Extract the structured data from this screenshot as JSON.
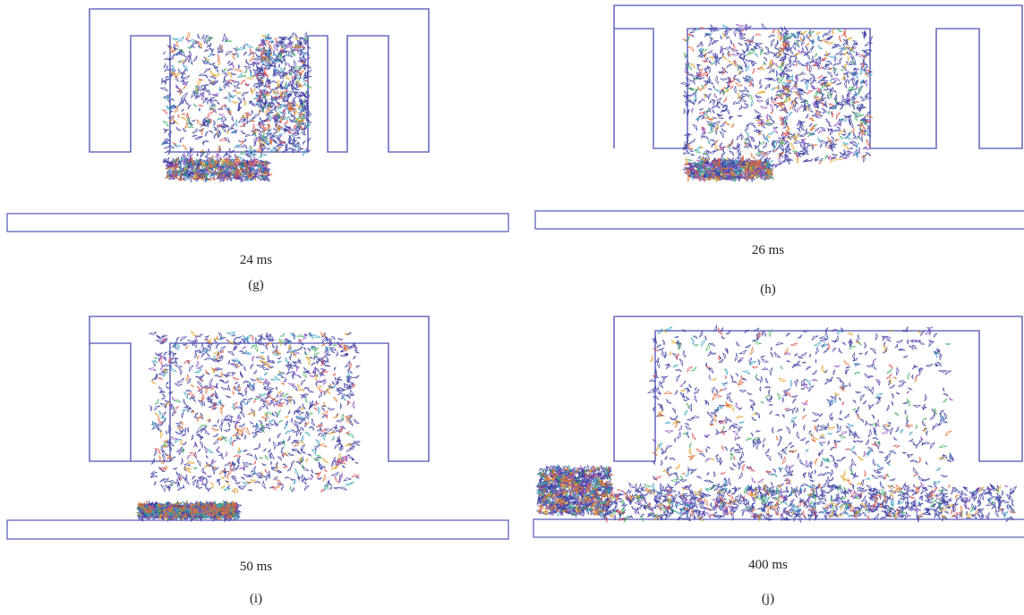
{
  "panels": [
    {
      "id": "g",
      "time": "24 ms",
      "caption": "(g)"
    },
    {
      "id": "h",
      "time": "26 ms",
      "caption": "(h)"
    },
    {
      "id": "i",
      "time": "50 ms",
      "caption": "(i)"
    },
    {
      "id": "j",
      "time": "400 ms",
      "caption": "(j)"
    }
  ],
  "colors": {
    "frame": "#6a6ec0",
    "particle_main": "#3a3ea0",
    "particle_accents": [
      "#e05050",
      "#40b060",
      "#e0a020",
      "#30a0c0",
      "#9050c0",
      "#e07030"
    ]
  }
}
